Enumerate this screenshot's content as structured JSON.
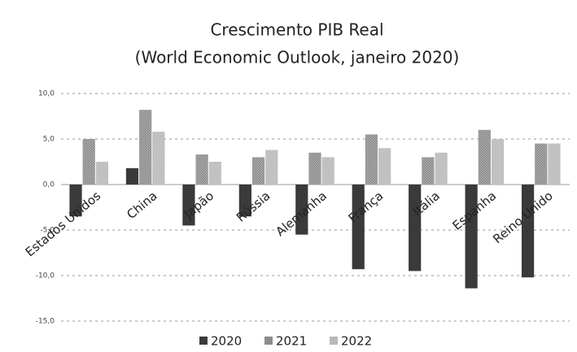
{
  "chart_data": {
    "type": "bar",
    "title": "Crescimento PIB Real",
    "subtitle": "(World Economic Outlook, janeiro 2020)",
    "categories": [
      "Estados Unidos",
      "China",
      "Japão",
      "Rússia",
      "Alemanha",
      "França",
      "Itália",
      "Espanha",
      "Reino Unido"
    ],
    "series": [
      {
        "name": "2020",
        "color": "#3a3a3a",
        "values": [
          -3.5,
          1.8,
          -4.5,
          -3.5,
          -5.5,
          -9.3,
          -9.5,
          -11.4,
          -10.2
        ]
      },
      {
        "name": "2021",
        "color": "#8c8c8c",
        "values": [
          5.0,
          8.2,
          3.3,
          3.0,
          3.5,
          5.5,
          3.0,
          6.0,
          4.5
        ]
      },
      {
        "name": "2022",
        "color": "#b8b8b8",
        "values": [
          2.5,
          5.8,
          2.5,
          3.8,
          3.0,
          4.0,
          3.5,
          5.0,
          4.5
        ]
      }
    ],
    "ylim": [
      -15,
      10
    ],
    "yticks": [
      {
        "value": 10,
        "label": "10,0"
      },
      {
        "value": 5,
        "label": "5,0"
      },
      {
        "value": 0,
        "label": "0,0"
      },
      {
        "value": -5,
        "label": "-5,0"
      },
      {
        "value": -10,
        "label": "-10,0"
      },
      {
        "value": -15,
        "label": "-15,0"
      }
    ],
    "grid": true,
    "legend": "bottom"
  }
}
